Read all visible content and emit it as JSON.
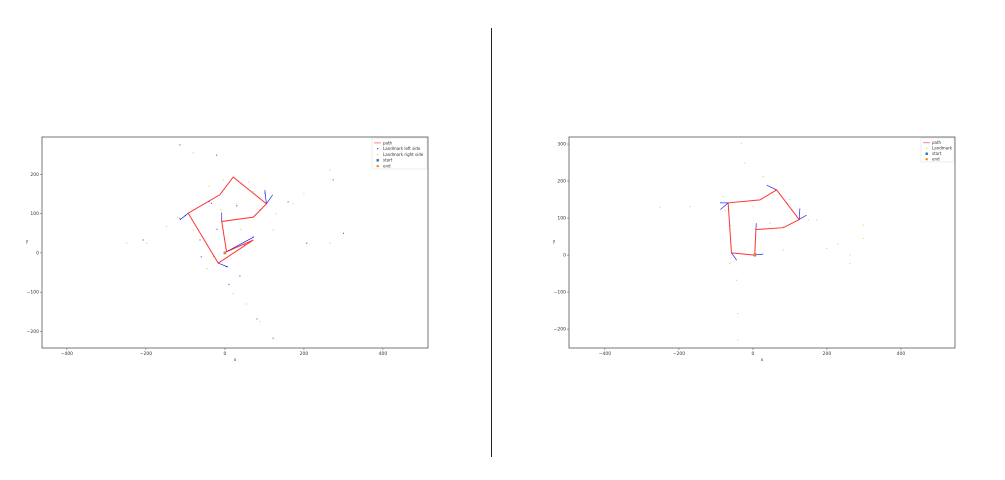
{
  "chart_data": [
    {
      "type": "scatter",
      "xlabel": "x",
      "ylabel": "y",
      "xlim": [
        -463,
        514
      ],
      "ylim": [
        -242,
        295
      ],
      "xticks": [
        -400,
        -200,
        0,
        200,
        400
      ],
      "yticks": [
        -200,
        -100,
        0,
        100,
        200
      ],
      "xtick_labels": [
        "−400",
        "−200",
        "0",
        "200",
        "400"
      ],
      "ytick_labels": [
        "−200",
        "−100",
        "0",
        "100",
        "200"
      ],
      "grid": false,
      "legend_position": "top-right",
      "legend": [
        "path",
        "Landmark left side",
        "Landmark right side",
        "start",
        "end"
      ],
      "path": [
        [
          4,
          3
        ],
        [
          -8,
          80
        ],
        [
          72,
          91
        ],
        [
          105,
          125
        ],
        [
          21,
          193
        ],
        [
          -13,
          148
        ],
        [
          -93,
          101
        ],
        [
          -17,
          -26
        ],
        [
          72,
          33
        ],
        [
          4,
          3
        ]
      ],
      "start": [
        0,
        0
      ],
      "end": [
        0,
        0
      ],
      "landmarks_left": [
        [
          -114,
          275
        ],
        [
          -21,
          249
        ],
        [
          274,
          186
        ],
        [
          300,
          50
        ],
        [
          122,
          -217
        ],
        [
          81,
          -168
        ],
        [
          207,
          25
        ],
        [
          -207,
          33
        ],
        [
          -114,
          88
        ],
        [
          101,
          152
        ],
        [
          4,
          -35
        ],
        [
          38,
          -59
        ],
        [
          72,
          41
        ],
        [
          -34,
          126
        ],
        [
          -63,
          33
        ],
        [
          -100,
          95
        ],
        [
          -40,
          130
        ],
        [
          30,
          120
        ],
        [
          90,
          110
        ],
        [
          -20,
          60
        ],
        [
          50,
          20
        ],
        [
          -60,
          -10
        ],
        [
          10,
          -80
        ],
        [
          160,
          130
        ]
      ],
      "landmarks_right": [
        [
          -249,
          25
        ],
        [
          -198,
          25
        ],
        [
          -148,
          67
        ],
        [
          -80,
          255
        ],
        [
          266,
          211
        ],
        [
          173,
          125
        ],
        [
          266,
          25
        ],
        [
          89,
          -175
        ],
        [
          21,
          -103
        ],
        [
          -29,
          -9
        ],
        [
          30,
          126
        ],
        [
          72,
          156
        ],
        [
          -4,
          186
        ],
        [
          122,
          58
        ],
        [
          -80,
          58
        ],
        [
          -40,
          170
        ],
        [
          60,
          180
        ],
        [
          -120,
          90
        ],
        [
          -10,
          110
        ],
        [
          40,
          60
        ],
        [
          -45,
          -40
        ],
        [
          55,
          -130
        ],
        [
          200,
          150
        ],
        [
          130,
          100
        ]
      ],
      "observation_rays": [
        [
          [
            -114,
            84
          ],
          [
            -93,
            101
          ]
        ],
        [
          [
            101,
            160
          ],
          [
            105,
            125
          ]
        ],
        [
          [
            121,
            148
          ],
          [
            105,
            125
          ]
        ],
        [
          [
            72,
            40
          ],
          [
            4,
            3
          ]
        ],
        [
          [
            -8,
            103
          ],
          [
            -8,
            80
          ]
        ],
        [
          [
            8,
            -36
          ],
          [
            -17,
            -26
          ]
        ]
      ],
      "colors": {
        "path": "#ff0000",
        "landmark_left": "#0000ff",
        "landmark_right": "#cccc00",
        "start": "#1f77b4",
        "end": "#ff7f0e"
      }
    },
    {
      "type": "scatter",
      "xlabel": "x",
      "ylabel": "y",
      "xlim": [
        -497,
        546
      ],
      "ylim": [
        -251,
        319
      ],
      "xticks": [
        -400,
        -200,
        0,
        200,
        400
      ],
      "yticks": [
        -200,
        -100,
        0,
        100,
        200,
        300
      ],
      "xtick_labels": [
        "−400",
        "−200",
        "0",
        "200",
        "400"
      ],
      "ytick_labels": [
        "−200",
        "−100",
        "0",
        "100",
        "200",
        "300"
      ],
      "grid": false,
      "legend_position": "top-right",
      "legend": [
        "path",
        "Landmark",
        "start",
        "end"
      ],
      "path": [
        [
          5,
          0
        ],
        [
          -58,
          6
        ],
        [
          -67,
          141
        ],
        [
          19,
          149
        ],
        [
          64,
          176
        ],
        [
          125,
          96
        ],
        [
          82,
          74
        ],
        [
          8,
          69
        ],
        [
          5,
          0
        ]
      ],
      "start": [
        5,
        0
      ],
      "end": [
        5,
        0
      ],
      "landmarks": [
        [
          -251,
          129
        ],
        [
          -170,
          131
        ],
        [
          -31,
          302
        ],
        [
          -22,
          248
        ],
        [
          28,
          212
        ],
        [
          172,
          95
        ],
        [
          298,
          81
        ],
        [
          298,
          45
        ],
        [
          262,
          0
        ],
        [
          199,
          18
        ],
        [
          82,
          14
        ],
        [
          -44,
          -68
        ],
        [
          -41,
          -158
        ],
        [
          -41,
          -230
        ],
        [
          -62,
          -23
        ],
        [
          -80,
          158
        ],
        [
          1,
          131
        ],
        [
          91,
          140
        ],
        [
          46,
          86
        ],
        [
          262,
          -23
        ],
        [
          9,
          5
        ],
        [
          82,
          77
        ],
        [
          -60,
          80
        ],
        [
          -20,
          2
        ],
        [
          -75,
          120
        ],
        [
          100,
          150
        ],
        [
          150,
          95
        ],
        [
          230,
          30
        ]
      ],
      "observation_rays": [
        [
          [
            -89,
            141
          ],
          [
            -67,
            141
          ]
        ],
        [
          [
            -88,
            123
          ],
          [
            -67,
            141
          ]
        ],
        [
          [
            127,
            126
          ],
          [
            125,
            96
          ]
        ],
        [
          [
            145,
            108
          ],
          [
            125,
            96
          ]
        ],
        [
          [
            28,
            3
          ],
          [
            5,
            0
          ]
        ],
        [
          [
            -44,
            -14
          ],
          [
            -58,
            6
          ]
        ],
        [
          [
            9,
            86
          ],
          [
            8,
            69
          ]
        ],
        [
          [
            37,
            189
          ],
          [
            64,
            176
          ]
        ]
      ],
      "colors": {
        "path": "#ff0000",
        "landmark": "#cccc00",
        "ray": "#0000ff",
        "start": "#1f77b4",
        "end": "#ff7f0e"
      }
    }
  ]
}
